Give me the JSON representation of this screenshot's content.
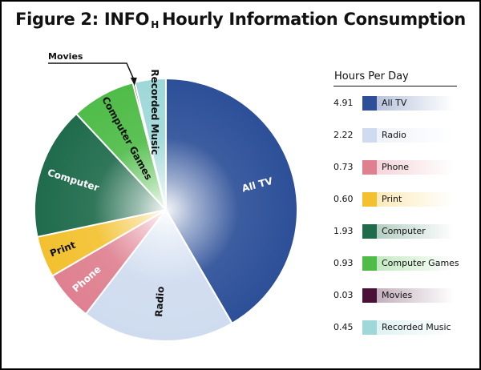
{
  "title": {
    "prefix": "Figure 2:  INFO",
    "subscript": "H",
    "suffix": "Hourly Information Consumption"
  },
  "legend": {
    "heading": "Hours Per Day"
  },
  "callout": {
    "movies_label": "Movies"
  },
  "chart_data": {
    "type": "pie",
    "title": "Figure 2:  INFO H Hourly Information Consumption",
    "legend_title": "Hours Per Day",
    "legend_position": "right",
    "slices": [
      {
        "label": "All TV",
        "value": 4.91,
        "value_label": "4.91",
        "color": "#2c4f98",
        "text_color": "#ffffff"
      },
      {
        "label": "Radio",
        "value": 2.22,
        "value_label": "2.22",
        "color": "#cfdcef",
        "text_color": "#111111"
      },
      {
        "label": "Phone",
        "value": 0.73,
        "value_label": "0.73",
        "color": "#df8090",
        "text_color": "#ffffff"
      },
      {
        "label": "Print",
        "value": 0.6,
        "value_label": "0.60",
        "color": "#f3c12f",
        "text_color": "#111111"
      },
      {
        "label": "Computer",
        "value": 1.93,
        "value_label": "1.93",
        "color": "#1f6b4c",
        "text_color": "#ffffff"
      },
      {
        "label": "Computer Games",
        "value": 0.93,
        "value_label": "0.93",
        "color": "#4fbc48",
        "text_color": "#111111"
      },
      {
        "label": "Movies",
        "value": 0.03,
        "value_label": "0.03",
        "color": "#4a1035",
        "text_color": "#ffffff"
      },
      {
        "label": "Recorded Music",
        "value": 0.45,
        "value_label": "0.45",
        "color": "#9fd8d8",
        "text_color": "#111111"
      }
    ]
  }
}
